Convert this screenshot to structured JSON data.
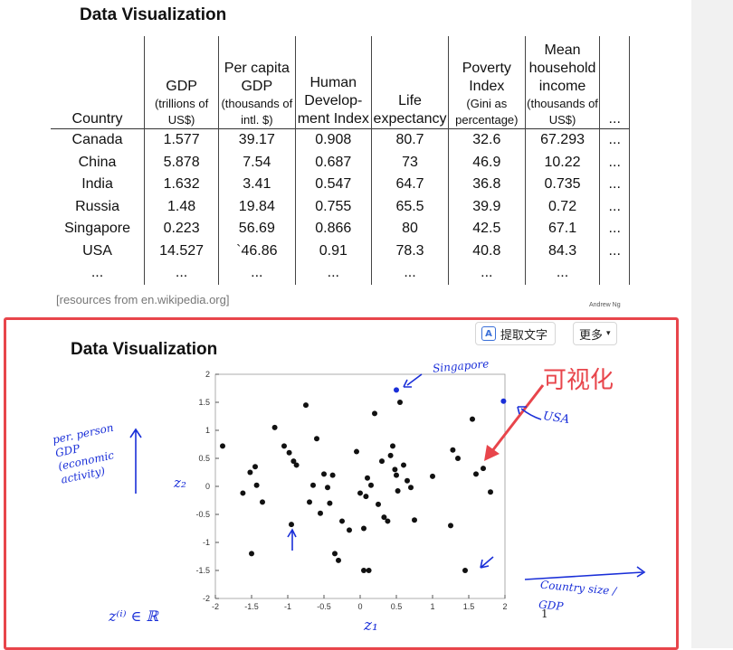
{
  "top_slide": {
    "title": "Data Visualization",
    "source": "[resources from en.wikipedia.org]",
    "author": "Andrew Ng",
    "columns": [
      {
        "main": "Country",
        "sub": ""
      },
      {
        "main": "GDP",
        "sub": "(trillions of US$)"
      },
      {
        "main": "Per capita GDP",
        "sub": "(thousands of intl. $)"
      },
      {
        "main": "Human Develop- ment Index",
        "sub": ""
      },
      {
        "main": "Life expectancy",
        "sub": ""
      },
      {
        "main": "Poverty Index",
        "sub": "(Gini as percentage)"
      },
      {
        "main": "Mean household income",
        "sub": "(thousands of US$)"
      },
      {
        "main": "...",
        "sub": ""
      }
    ],
    "rows": [
      [
        "Canada",
        "1.577",
        "39.17",
        "0.908",
        "80.7",
        "32.6",
        "67.293",
        "..."
      ],
      [
        "China",
        "5.878",
        "7.54",
        "0.687",
        "73",
        "46.9",
        "10.22",
        "..."
      ],
      [
        "India",
        "1.632",
        "3.41",
        "0.547",
        "64.7",
        "36.8",
        "0.735",
        "..."
      ],
      [
        "Russia",
        "1.48",
        "19.84",
        "0.755",
        "65.5",
        "39.9",
        "0.72",
        "..."
      ],
      [
        "Singapore",
        "0.223",
        "56.69",
        "0.866",
        "80",
        "42.5",
        "67.1",
        "..."
      ],
      [
        "USA",
        "14.527",
        "`46.86",
        "0.91",
        "78.3",
        "40.8",
        "84.3",
        "..."
      ],
      [
        "...",
        "...",
        "...",
        "...",
        "...",
        "...",
        "...",
        ""
      ]
    ]
  },
  "toolbar": {
    "extract_label": "提取文字",
    "more_label": "更多",
    "extract_icon": "text-extract-icon",
    "more_icon": "chevron-down-icon"
  },
  "plot_slide": {
    "title": "Data Visualization",
    "red_annotation": "可视化",
    "handwriting": {
      "ylabel": "per. person GDP (economic activity)",
      "zaxis_y": "z₂",
      "zaxis_x": "z₁",
      "singapore": "Singapore",
      "usa": "USA",
      "country_size": "Country size / GDP",
      "z_in_R": "z⁽ⁱ⁾ ∈ ℝ",
      "small_one": "1"
    }
  },
  "chart_data": {
    "type": "scatter",
    "title": "",
    "xlabel": "z₁",
    "ylabel": "z₂",
    "xlim": [
      -2,
      2
    ],
    "ylim": [
      -2,
      2
    ],
    "xticks": [
      "-2",
      "-1.5",
      "-1",
      "-0.5",
      "0",
      "0.5",
      "1",
      "1.5",
      "2"
    ],
    "yticks": [
      "2",
      "1.5",
      "1",
      "0.5",
      "0",
      "-0.5",
      "-1",
      "-1.5",
      "-2"
    ],
    "grid": false,
    "points": [
      [
        -1.9,
        0.72
      ],
      [
        -1.62,
        -0.12
      ],
      [
        -1.52,
        0.25
      ],
      [
        -1.45,
        0.35
      ],
      [
        -1.43,
        0.02
      ],
      [
        -1.35,
        -0.28
      ],
      [
        -1.5,
        -1.2
      ],
      [
        -1.18,
        1.05
      ],
      [
        -1.05,
        0.72
      ],
      [
        -0.98,
        0.6
      ],
      [
        -0.92,
        0.45
      ],
      [
        -0.88,
        0.38
      ],
      [
        -0.75,
        1.45
      ],
      [
        -0.7,
        -0.28
      ],
      [
        -0.65,
        0.02
      ],
      [
        -0.6,
        0.85
      ],
      [
        -0.55,
        -0.48
      ],
      [
        -0.5,
        0.22
      ],
      [
        -0.45,
        -0.02
      ],
      [
        -0.42,
        -0.3
      ],
      [
        -0.38,
        0.2
      ],
      [
        -0.35,
        -1.2
      ],
      [
        -0.3,
        -1.32
      ],
      [
        -0.25,
        -0.62
      ],
      [
        -0.15,
        -0.78
      ],
      [
        -0.05,
        0.62
      ],
      [
        0.0,
        -0.12
      ],
      [
        0.05,
        -0.75
      ],
      [
        0.08,
        -0.18
      ],
      [
        0.1,
        0.15
      ],
      [
        0.15,
        0.02
      ],
      [
        0.2,
        1.3
      ],
      [
        0.25,
        -0.32
      ],
      [
        0.3,
        0.45
      ],
      [
        0.33,
        -0.55
      ],
      [
        0.38,
        -0.62
      ],
      [
        0.42,
        0.55
      ],
      [
        0.45,
        0.72
      ],
      [
        0.48,
        0.3
      ],
      [
        0.5,
        0.2
      ],
      [
        0.52,
        -0.08
      ],
      [
        0.55,
        1.5
      ],
      [
        0.6,
        0.38
      ],
      [
        0.65,
        0.1
      ],
      [
        0.7,
        -0.02
      ],
      [
        0.75,
        -0.6
      ],
      [
        0.05,
        -1.5
      ],
      [
        0.12,
        -1.5
      ],
      [
        1.0,
        0.18
      ],
      [
        1.25,
        -0.7
      ],
      [
        1.28,
        0.65
      ],
      [
        1.35,
        0.5
      ],
      [
        1.45,
        -1.5
      ],
      [
        1.55,
        1.2
      ],
      [
        1.6,
        0.22
      ],
      [
        1.7,
        0.32
      ],
      [
        1.8,
        -0.1
      ],
      [
        -0.95,
        -0.68
      ]
    ],
    "highlight_points": [
      {
        "name": "Singapore",
        "x": 0.5,
        "y": 1.72,
        "color": "#1a2fd8"
      },
      {
        "name": "USA",
        "x": 1.98,
        "y": 1.52,
        "color": "#1a2fd8"
      }
    ],
    "point_color": "#111111"
  }
}
